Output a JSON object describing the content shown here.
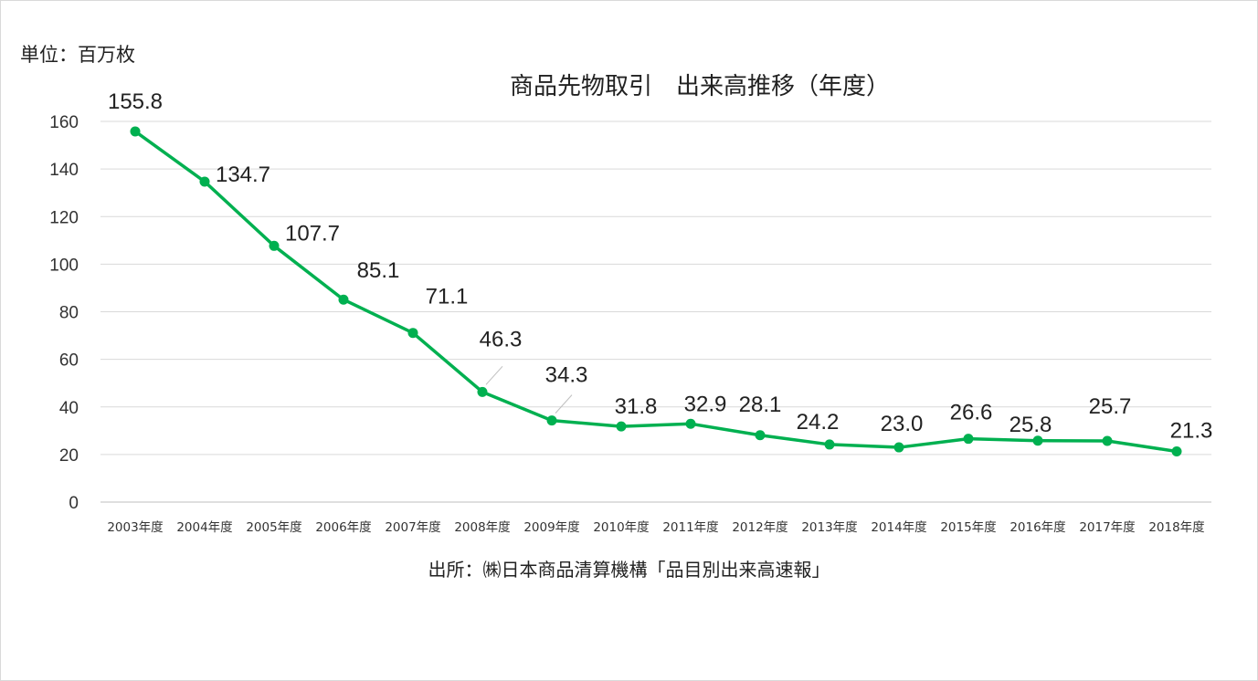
{
  "chart_data": {
    "type": "line",
    "title": "商品先物取引　出来高推移（年度）",
    "unit_label": "単位：百万枚",
    "source": "出所：㈱日本商品清算機構「品目別出来高速報」",
    "categories": [
      "2003年度",
      "2004年度",
      "2005年度",
      "2006年度",
      "2007年度",
      "2008年度",
      "2009年度",
      "2010年度",
      "2011年度",
      "2012年度",
      "2013年度",
      "2014年度",
      "2015年度",
      "2016年度",
      "2017年度",
      "2018年度"
    ],
    "values": [
      155.8,
      134.7,
      107.7,
      85.1,
      71.1,
      46.3,
      34.3,
      31.8,
      32.9,
      28.1,
      24.2,
      23.0,
      26.6,
      25.8,
      25.7,
      21.3
    ],
    "value_labels": [
      "155.8",
      "134.7",
      "107.7",
      "85.1",
      "71.1",
      "46.3",
      "34.3",
      "31.8",
      "32.9",
      "28.1",
      "24.2",
      "23.0",
      "26.6",
      "25.8",
      "25.7",
      "21.3"
    ],
    "yticks": [
      0,
      20,
      40,
      60,
      80,
      100,
      120,
      140,
      160
    ],
    "ylim": [
      0,
      160
    ],
    "grid": true,
    "legend": "none",
    "line_color": "#00b050"
  }
}
